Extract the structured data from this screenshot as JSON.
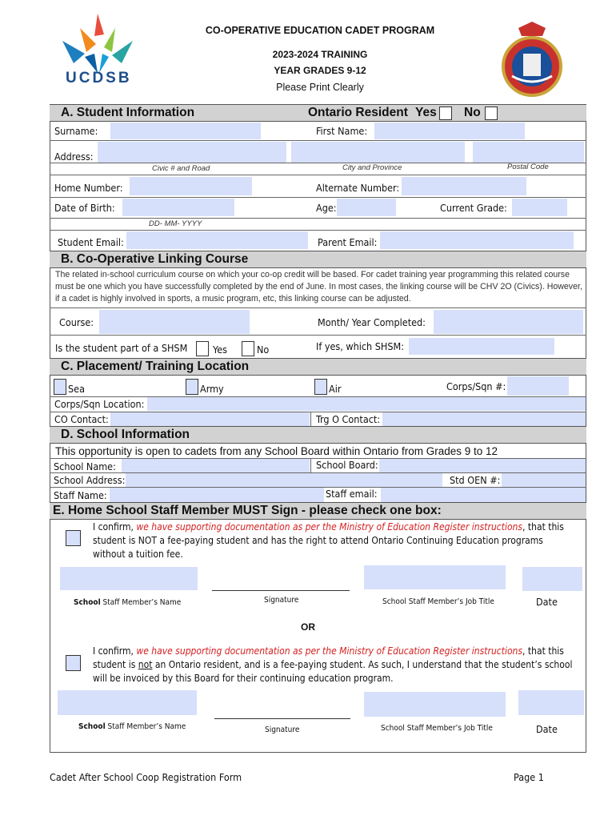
{
  "header": {
    "title": "CO-OPERATIVE EDUCATION CADET PROGRAM",
    "year": "2023-2024 TRAINING",
    "grades": "YEAR GRADES 9-12",
    "instruction": "Please Print Clearly",
    "logo_text": "UCDSB"
  },
  "colors": {
    "field": "#d6e0fb",
    "section_header": "#d2d2d2",
    "emphasis": "#d42020"
  },
  "section_a": {
    "title": "A.  Student Information",
    "resident_label": "Ontario Resident",
    "yes": "Yes",
    "no": "No",
    "surname": "Surname:",
    "first_name": "First Name:",
    "address": "Address:",
    "civic": "Civic # and Road",
    "city": "City and Province",
    "postal": "Postal Code",
    "home_number": "Home Number:",
    "alternate_number": "Alternate Number:",
    "dob": "Date of Birth:",
    "age": "Age:",
    "grade": "Current Grade:",
    "dob_format": "DD- MM- YYYY",
    "student_email": "Student Email:",
    "parent_email": "Parent Email:"
  },
  "section_b": {
    "title": "B.  Co-Operative Linking Course",
    "description": "The related in-school curriculum course on which your co-op credit will be based. For cadet training year programming this related course must be one which you have successfully completed by the end of June. In most cases, the linking course will be CHV 2O (Civics). However, if a cadet is highly involved in sports, a music program, etc, this linking course can be adjusted.",
    "course": "Course:",
    "month_year": "Month/ Year Completed:",
    "shsm_question": "Is the student part of a SHSM",
    "yes": "Yes",
    "no": "No",
    "which_shsm": "If yes, which SHSM:"
  },
  "section_c": {
    "title": "C.  Placement/ Training Location",
    "sea": "Sea",
    "army": "Army",
    "air": "Air",
    "corps_num": "Corps/Sqn #:",
    "corps_location": "Corps/Sqn Location:",
    "co_contact": "CO Contact:",
    "trg_contact": "Trg O Contact:"
  },
  "section_d": {
    "title": "D.  School Information",
    "note": "This opportunity is open to cadets from any School Board within Ontario from Grades 9 to 12",
    "school_name": "School Name:",
    "school_board": "School Board:",
    "school_address": "School Address:",
    "oen": "Std OEN #:",
    "staff_name": "Staff Name:",
    "staff_email": "Staff email:"
  },
  "section_e": {
    "title": "E. Home School Staff Member MUST Sign - please check one box:",
    "confirm1_a": "I confirm, ",
    "confirm1_red": "we have supporting documentation as per the Ministry of Education Register instructions",
    "confirm1_b": ", that this student is NOT a fee-paying student and has the right to attend Ontario Continuing Education programs without a tuition fee.",
    "or": "OR",
    "confirm2_a": "I confirm, ",
    "confirm2_red": "we have supporting documentation as per the Ministry of Education Register instructions",
    "confirm2_b": ", that this student is ",
    "confirm2_not": "not",
    "confirm2_c": " an Ontario resident, and is a fee-paying student. As such, I understand that the student’s school will be invoiced by this Board for their continuing education program.",
    "staff_name_bold": "School",
    "staff_name_rest": " Staff Member’s Name",
    "signature": "Signature",
    "job_title": "School Staff Member’s Job Title",
    "date": "Date"
  },
  "footer": {
    "form_name": "Cadet After School Coop Registration Form",
    "page": "Page 1"
  }
}
